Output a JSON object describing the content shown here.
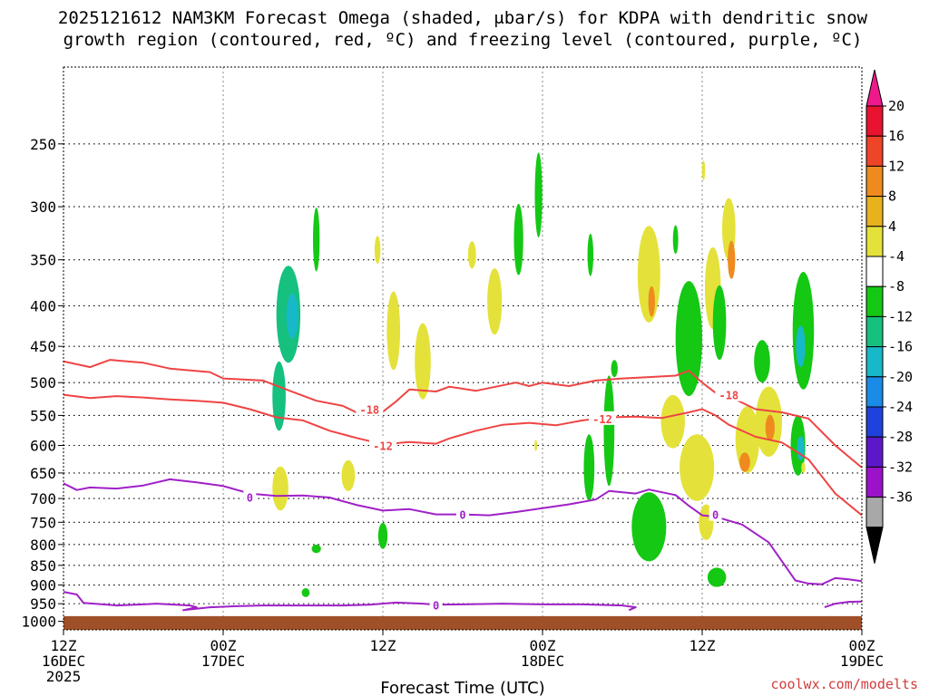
{
  "chart_data": {
    "type": "heatmap",
    "title_line1": "2025121612 NAM3KM Forecast Omega (shaded, μbar/s) for KDPA with dendritic snow",
    "title_line2": "growth region (contoured, red, ºC) and freezing level (contoured, purple, ºC)",
    "xlabel": "Forecast Time (UTC)",
    "credit": "coolwx.com/modelts",
    "xlim": [
      0,
      60
    ],
    "ylim": [
      1025,
      200
    ],
    "y_scale": "log-pressure",
    "yticks": [
      250,
      300,
      350,
      400,
      450,
      500,
      550,
      600,
      650,
      700,
      750,
      800,
      850,
      900,
      950,
      1000
    ],
    "xticks": [
      {
        "hour": 0,
        "line1": "12Z",
        "line2": "16DEC",
        "line3": "2025"
      },
      {
        "hour": 12,
        "line1": "00Z",
        "line2": "17DEC",
        "line3": ""
      },
      {
        "hour": 24,
        "line1": "12Z",
        "line2": "",
        "line3": ""
      },
      {
        "hour": 36,
        "line1": "00Z",
        "line2": "18DEC",
        "line3": ""
      },
      {
        "hour": 48,
        "line1": "12Z",
        "line2": "",
        "line3": ""
      },
      {
        "hour": 60,
        "line1": "00Z",
        "line2": "19DEC",
        "line3": ""
      }
    ],
    "colorbar": {
      "levels": [
        "20",
        "16",
        "12",
        "8",
        "4",
        "-4",
        "-8",
        "-12",
        "-16",
        "-20",
        "-24",
        "-28",
        "-32",
        "-36"
      ],
      "colors": [
        "#e8132f",
        "#ee4428",
        "#ef8b1e",
        "#e8b21f",
        "#e4e23a",
        "#ffffff",
        "#14c814",
        "#16c07e",
        "#17b8c8",
        "#1a8be6",
        "#1f42dc",
        "#5c18c8",
        "#9b12c8",
        "#a8a8a8"
      ],
      "top_color": "#ee1a8c",
      "bottom_color": "#000000"
    },
    "ground_pressure": 985,
    "ground_color": "#a05028",
    "omega_blobs": [
      {
        "t": 16.9,
        "p": 410,
        "w": 0.9,
        "h": 62,
        "value": -8
      },
      {
        "t": 17.2,
        "p": 412,
        "w": 0.45,
        "h": 28,
        "value": -12
      },
      {
        "t": 16.2,
        "p": 520,
        "w": 0.5,
        "h": 55,
        "value": -8
      },
      {
        "t": 19.0,
        "p": 330,
        "w": 0.25,
        "h": 32,
        "value": -6
      },
      {
        "t": 23.6,
        "p": 340,
        "w": 0.22,
        "h": 14,
        "value": 5
      },
      {
        "t": 24.8,
        "p": 430,
        "w": 0.5,
        "h": 52,
        "value": 5
      },
      {
        "t": 27.0,
        "p": 470,
        "w": 0.6,
        "h": 55,
        "value": 5
      },
      {
        "t": 16.3,
        "p": 680,
        "w": 0.6,
        "h": 45,
        "value": 5
      },
      {
        "t": 21.4,
        "p": 655,
        "w": 0.5,
        "h": 30,
        "value": 5
      },
      {
        "t": 24.0,
        "p": 780,
        "w": 0.35,
        "h": 30,
        "value": -6
      },
      {
        "t": 19.0,
        "p": 810,
        "w": 0.35,
        "h": 10,
        "value": -6
      },
      {
        "t": 30.7,
        "p": 345,
        "w": 0.3,
        "h": 14,
        "value": 5
      },
      {
        "t": 32.4,
        "p": 395,
        "w": 0.55,
        "h": 40,
        "value": 5
      },
      {
        "t": 34.2,
        "p": 330,
        "w": 0.35,
        "h": 36,
        "value": -6
      },
      {
        "t": 35.7,
        "p": 290,
        "w": 0.28,
        "h": 38,
        "value": -6
      },
      {
        "t": 35.5,
        "p": 600,
        "w": 0.1,
        "h": 10,
        "value": 5
      },
      {
        "t": 39.6,
        "p": 345,
        "w": 0.22,
        "h": 22,
        "value": -6
      },
      {
        "t": 41.4,
        "p": 480,
        "w": 0.25,
        "h": 12,
        "value": -6
      },
      {
        "t": 41.0,
        "p": 575,
        "w": 0.4,
        "h": 100,
        "value": -6
      },
      {
        "t": 39.5,
        "p": 640,
        "w": 0.4,
        "h": 65,
        "value": -6
      },
      {
        "t": 44.0,
        "p": 365,
        "w": 0.85,
        "h": 55,
        "value": 5
      },
      {
        "t": 44.2,
        "p": 395,
        "w": 0.25,
        "h": 18,
        "value": 9
      },
      {
        "t": 45.8,
        "p": 560,
        "w": 0.9,
        "h": 45,
        "value": 5
      },
      {
        "t": 47.6,
        "p": 640,
        "w": 1.3,
        "h": 65,
        "value": 5
      },
      {
        "t": 48.3,
        "p": 750,
        "w": 0.55,
        "h": 40,
        "value": 5
      },
      {
        "t": 44.0,
        "p": 760,
        "w": 1.3,
        "h": 80,
        "value": -6
      },
      {
        "t": 47.0,
        "p": 440,
        "w": 1.0,
        "h": 80,
        "value": -6
      },
      {
        "t": 46.0,
        "p": 330,
        "w": 0.2,
        "h": 14,
        "value": -6
      },
      {
        "t": 48.8,
        "p": 380,
        "w": 0.6,
        "h": 48,
        "value": 5
      },
      {
        "t": 48.1,
        "p": 270,
        "w": 0.12,
        "h": 8,
        "value": 5
      },
      {
        "t": 50.0,
        "p": 320,
        "w": 0.5,
        "h": 30,
        "value": 5
      },
      {
        "t": 50.2,
        "p": 350,
        "w": 0.28,
        "h": 20,
        "value": 9
      },
      {
        "t": 51.4,
        "p": 590,
        "w": 0.9,
        "h": 60,
        "value": 5
      },
      {
        "t": 51.2,
        "p": 630,
        "w": 0.4,
        "h": 18,
        "value": 9
      },
      {
        "t": 53.0,
        "p": 560,
        "w": 1.0,
        "h": 60,
        "value": 5
      },
      {
        "t": 53.1,
        "p": 570,
        "w": 0.35,
        "h": 22,
        "value": 9
      },
      {
        "t": 49.3,
        "p": 420,
        "w": 0.5,
        "h": 48,
        "value": -6
      },
      {
        "t": 52.5,
        "p": 470,
        "w": 0.6,
        "h": 30,
        "value": -6
      },
      {
        "t": 55.6,
        "p": 430,
        "w": 0.8,
        "h": 80,
        "value": -7
      },
      {
        "t": 55.4,
        "p": 450,
        "w": 0.35,
        "h": 28,
        "value": -12
      },
      {
        "t": 55.2,
        "p": 600,
        "w": 0.55,
        "h": 55,
        "value": -7
      },
      {
        "t": 55.4,
        "p": 605,
        "w": 0.28,
        "h": 22,
        "value": -12
      },
      {
        "t": 49.1,
        "p": 880,
        "w": 0.7,
        "h": 25,
        "value": -6
      },
      {
        "t": 18.2,
        "p": 920,
        "w": 0.3,
        "h": 12,
        "value": -6
      },
      {
        "t": 55.6,
        "p": 640,
        "w": 0.15,
        "h": 10,
        "value": 5
      }
    ],
    "contours": [
      {
        "name": "-18C",
        "color": "#ef4444",
        "label": "-18",
        "label_points": [
          {
            "t": 23.0,
            "p": 540
          },
          {
            "t": 50.0,
            "p": 518
          }
        ],
        "points": [
          [
            0,
            470
          ],
          [
            2,
            478
          ],
          [
            3.5,
            468
          ],
          [
            6,
            472
          ],
          [
            8,
            480
          ],
          [
            11,
            485
          ],
          [
            12,
            494
          ],
          [
            15,
            497
          ],
          [
            17,
            512
          ],
          [
            19,
            527
          ],
          [
            21,
            535
          ],
          [
            22,
            545
          ],
          [
            24,
            544
          ],
          [
            25,
            528
          ],
          [
            26,
            510
          ],
          [
            28,
            513
          ],
          [
            29,
            506
          ],
          [
            31,
            512
          ],
          [
            33,
            504
          ],
          [
            34,
            500
          ],
          [
            35,
            505
          ],
          [
            36,
            500
          ],
          [
            38,
            505
          ],
          [
            40,
            497
          ],
          [
            42,
            494
          ],
          [
            44,
            492
          ],
          [
            46,
            490
          ],
          [
            47,
            483
          ],
          [
            48,
            500
          ],
          [
            49,
            515
          ],
          [
            50,
            520
          ],
          [
            52,
            540
          ],
          [
            54,
            545
          ],
          [
            56,
            555
          ],
          [
            58,
            600
          ],
          [
            60,
            640
          ]
        ]
      },
      {
        "name": "-12C",
        "color": "#ef4444",
        "label": "-12",
        "label_points": [
          {
            "t": 24.0,
            "p": 600
          },
          {
            "t": 40.5,
            "p": 555
          }
        ],
        "points": [
          [
            0,
            518
          ],
          [
            2,
            523
          ],
          [
            4,
            520
          ],
          [
            6,
            522
          ],
          [
            8,
            525
          ],
          [
            10,
            527
          ],
          [
            12,
            530
          ],
          [
            14,
            540
          ],
          [
            16,
            553
          ],
          [
            18,
            558
          ],
          [
            20,
            575
          ],
          [
            22,
            587
          ],
          [
            24,
            598
          ],
          [
            26,
            594
          ],
          [
            28,
            597
          ],
          [
            29,
            588
          ],
          [
            31,
            575
          ],
          [
            33,
            565
          ],
          [
            35,
            562
          ],
          [
            37,
            566
          ],
          [
            39,
            558
          ],
          [
            41,
            553
          ],
          [
            43,
            552
          ],
          [
            45,
            554
          ],
          [
            47,
            545
          ],
          [
            48,
            540
          ],
          [
            49,
            550
          ],
          [
            50,
            565
          ],
          [
            52,
            585
          ],
          [
            54,
            595
          ],
          [
            56,
            625
          ],
          [
            58,
            690
          ],
          [
            60,
            735
          ]
        ]
      },
      {
        "name": "0C",
        "color": "#a020c8",
        "label": "0",
        "label_points": [
          {
            "t": 14.0,
            "p": 697
          },
          {
            "t": 30.0,
            "p": 733
          },
          {
            "t": 49.0,
            "p": 733
          }
        ],
        "points": [
          [
            0,
            670
          ],
          [
            1,
            683
          ],
          [
            2,
            678
          ],
          [
            4,
            680
          ],
          [
            6,
            674
          ],
          [
            8,
            662
          ],
          [
            10,
            668
          ],
          [
            12,
            675
          ],
          [
            14,
            690
          ],
          [
            16,
            695
          ],
          [
            18,
            694
          ],
          [
            20,
            698
          ],
          [
            22,
            713
          ],
          [
            24,
            725
          ],
          [
            26,
            722
          ],
          [
            28,
            733
          ],
          [
            30,
            733
          ],
          [
            32,
            735
          ],
          [
            34,
            728
          ],
          [
            36,
            720
          ],
          [
            38,
            712
          ],
          [
            40,
            702
          ],
          [
            41,
            685
          ],
          [
            43,
            690
          ],
          [
            44,
            682
          ],
          [
            46,
            693
          ],
          [
            47,
            715
          ],
          [
            48,
            735
          ],
          [
            49,
            738
          ],
          [
            51,
            755
          ],
          [
            53,
            795
          ],
          [
            54,
            840
          ],
          [
            55,
            888
          ],
          [
            56,
            896
          ],
          [
            57,
            898
          ],
          [
            58,
            882
          ],
          [
            59,
            885
          ],
          [
            60,
            890
          ]
        ]
      },
      {
        "name": "0C-low",
        "color": "#a020c8",
        "label": "0",
        "label_points": [
          {
            "t": 28.0,
            "p": 953
          }
        ],
        "points": [
          [
            0,
            918
          ],
          [
            1,
            925
          ],
          [
            1.5,
            948
          ],
          [
            4,
            955
          ],
          [
            6,
            952
          ],
          [
            7,
            950
          ],
          [
            9.5,
            955
          ],
          [
            10,
            960
          ],
          [
            9,
            968
          ],
          [
            11,
            960
          ],
          [
            13,
            957
          ],
          [
            15,
            955
          ],
          [
            18,
            955
          ],
          [
            21,
            955
          ],
          [
            23,
            953
          ],
          [
            25,
            947
          ],
          [
            27,
            950
          ],
          [
            28,
            953
          ],
          [
            30,
            952
          ],
          [
            33,
            950
          ],
          [
            36,
            952
          ],
          [
            39,
            952
          ],
          [
            42,
            955
          ],
          [
            43,
            960
          ],
          [
            42.5,
            968
          ]
        ]
      },
      {
        "name": "0C-right",
        "color": "#a020c8",
        "label": "",
        "label_points": [],
        "points": [
          [
            57.2,
            960
          ],
          [
            58,
            950
          ],
          [
            59,
            945
          ],
          [
            60,
            944
          ]
        ]
      }
    ]
  }
}
